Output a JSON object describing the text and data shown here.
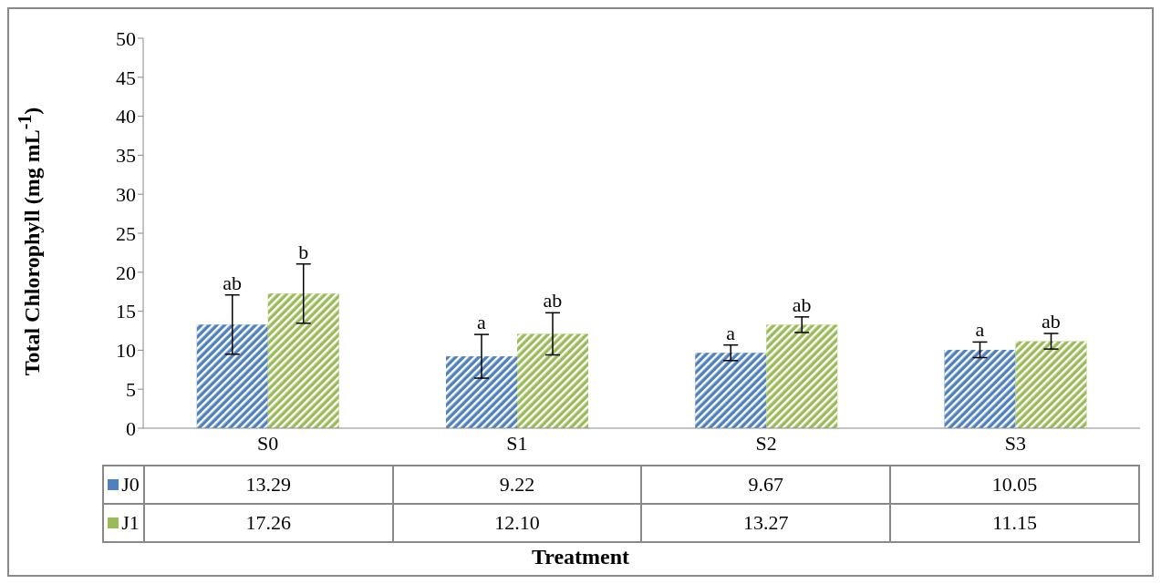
{
  "chart_data": {
    "type": "bar",
    "ylabel": "Total Chlorophyll (mg mL$^{-1}$)",
    "xlabel": "Treatment",
    "categories": [
      "S0",
      "S1",
      "S2",
      "S3"
    ],
    "series": [
      {
        "name": "J0",
        "color": "#4f81bd",
        "values": [
          13.29,
          9.22,
          9.67,
          10.05
        ],
        "errors": [
          3.8,
          2.8,
          1.0,
          1.0
        ],
        "value_labels": [
          "13.29",
          "9.22",
          "9.67",
          "10.05"
        ]
      },
      {
        "name": "J1",
        "color": "#9bbb59",
        "values": [
          17.26,
          12.1,
          13.27,
          11.15
        ],
        "errors": [
          3.8,
          2.7,
          1.0,
          1.0
        ],
        "value_labels": [
          "17.26",
          "12.10",
          "13.27",
          "11.15"
        ]
      }
    ],
    "ylim": [
      0,
      50
    ],
    "yticks": [
      0,
      5,
      10,
      15,
      20,
      25,
      30,
      35,
      40,
      45,
      50
    ],
    "grid": false,
    "legend": "bottom",
    "annotations": [
      {
        "text": "ab",
        "x": "S0",
        "y": 13.29
      },
      {
        "text": "b",
        "x": "S0",
        "y": 17.26
      },
      {
        "text": "a",
        "x": "S1",
        "y": 9.22
      },
      {
        "text": "ab",
        "x": "S1",
        "y": 12.1
      },
      {
        "text": "a",
        "x": "S2",
        "y": 9.67
      },
      {
        "text": "ab",
        "x": "S2",
        "y": 13.27
      },
      {
        "text": "a",
        "x": "S3",
        "y": 10.05
      },
      {
        "text": "ab",
        "x": "S3",
        "y": 11.15
      }
    ]
  }
}
